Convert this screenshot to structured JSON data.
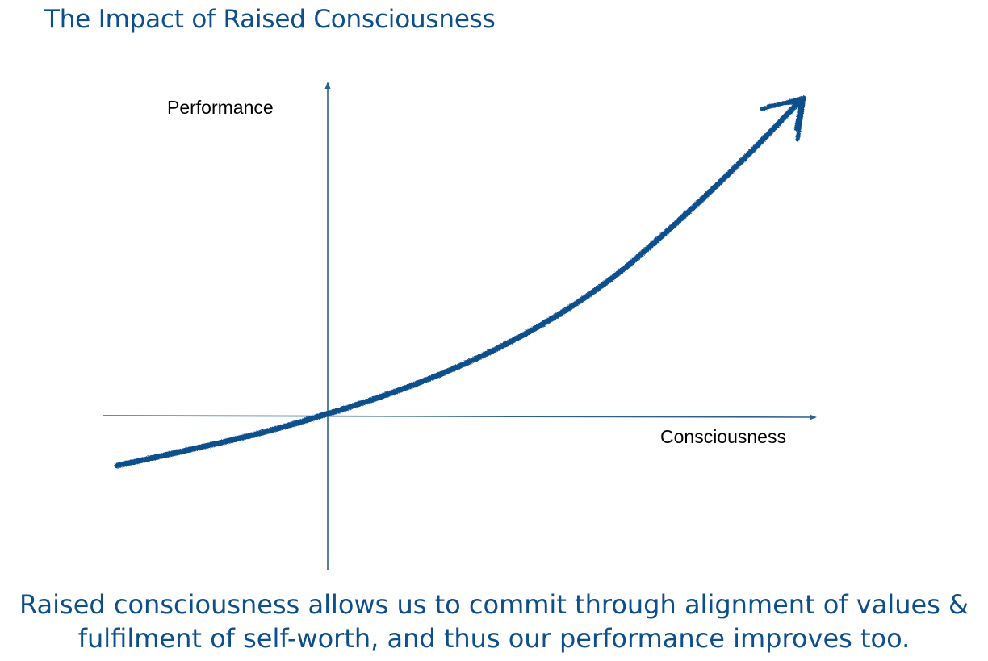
{
  "title": "The Impact of Raised Consciousness",
  "diagram": {
    "y_axis_label": "Performance",
    "x_axis_label": "Consciousness"
  },
  "caption": {
    "line1": "Raised consciousness allows us to commit through alignment of values &",
    "line2": "fulfilment of self-worth, and thus our performance improves too."
  },
  "colors": {
    "accent": "#0c4f8c",
    "curve": "#0d4f8d",
    "axis": "#2a5f91"
  }
}
